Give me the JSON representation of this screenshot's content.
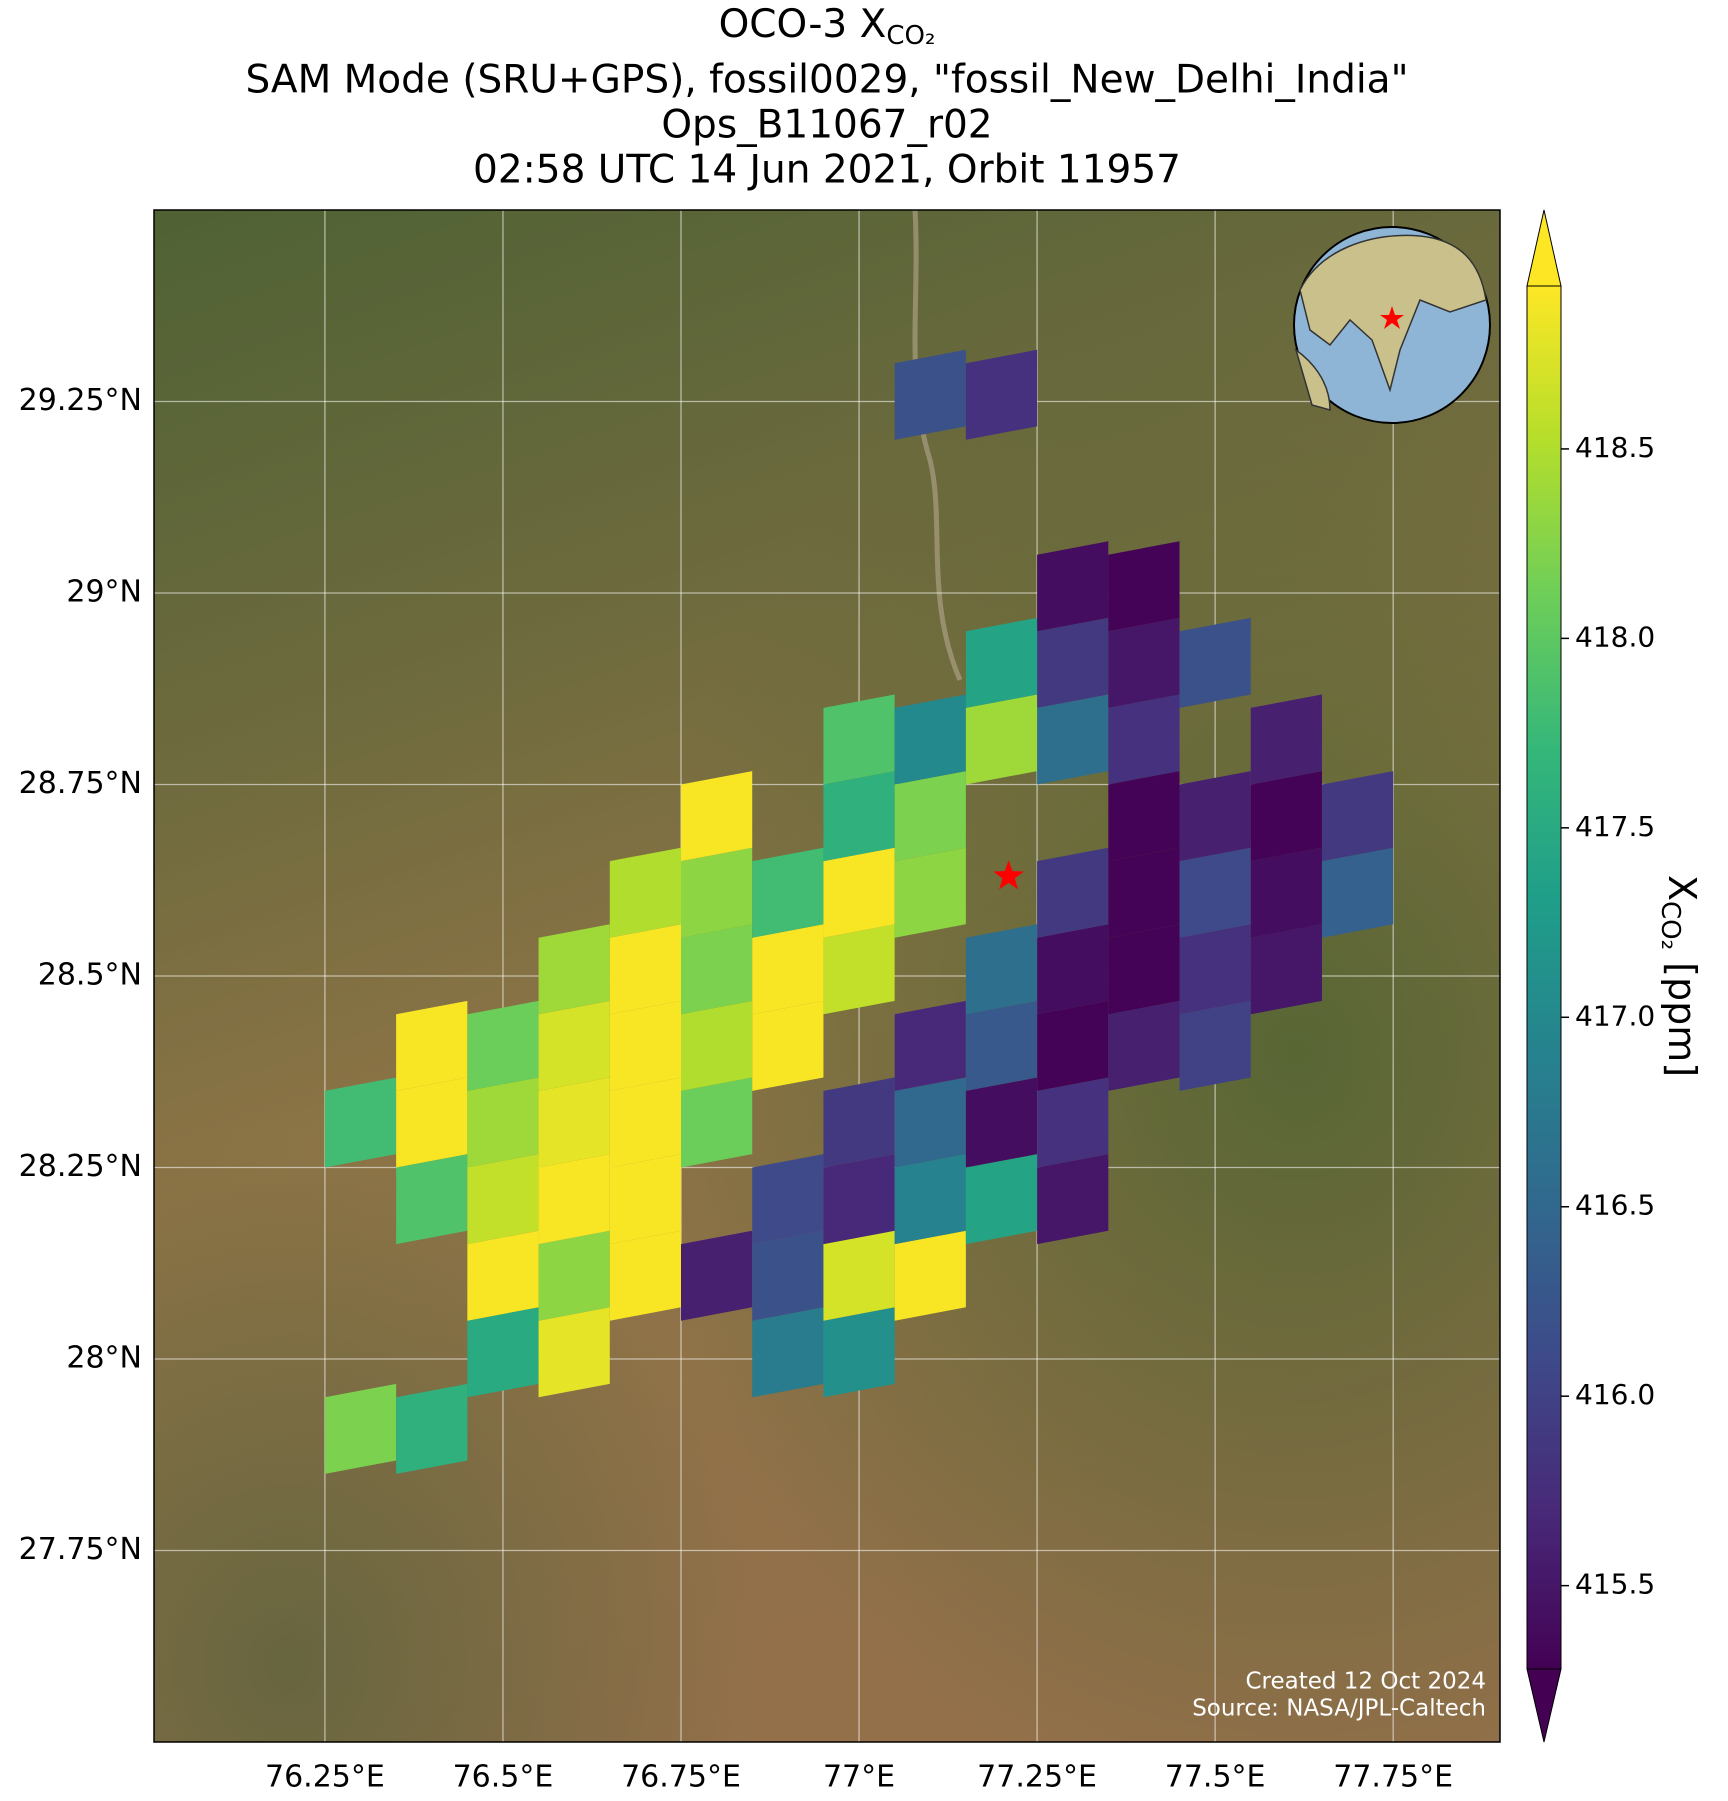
{
  "chart_data": {
    "type": "map",
    "title_prefix": "OCO-3 X",
    "title_subscript": "CO₂",
    "subtitle_lines": [
      "SAM Mode (SRU+GPS), fossil0029, \"fossil_New_Delhi_India\"",
      "Ops_B11067_r02",
      "02:58 UTC 14 Jun 2021, Orbit 11957"
    ],
    "xlim": [
      76.01,
      77.9
    ],
    "ylim": [
      27.5,
      29.5
    ],
    "xticks": [
      {
        "value": 76.25,
        "label": "76.25°E"
      },
      {
        "value": 76.5,
        "label": "76.5°E"
      },
      {
        "value": 76.75,
        "label": "76.75°E"
      },
      {
        "value": 77,
        "label": "77°E"
      },
      {
        "value": 77.25,
        "label": "77.25°E"
      },
      {
        "value": 77.5,
        "label": "77.5°E"
      },
      {
        "value": 77.75,
        "label": "77.75°E"
      }
    ],
    "yticks": [
      {
        "value": 27.75,
        "label": "27.75°N"
      },
      {
        "value": 28,
        "label": "28°N"
      },
      {
        "value": 28.25,
        "label": "28.25°N"
      },
      {
        "value": 28.5,
        "label": "28.5°N"
      },
      {
        "value": 28.75,
        "label": "28.75°N"
      },
      {
        "value": 29,
        "label": "29°N"
      },
      {
        "value": 29.25,
        "label": "29.25°N"
      }
    ],
    "grid": true,
    "colormap": "viridis",
    "clim": [
      415.28,
      418.93
    ],
    "cticks": [
      415.5,
      {
        "value": 416,
        "label": "416.0"
      },
      416.5,
      {
        "value": 417,
        "label": "417.0"
      },
      417.5,
      {
        "value": 418,
        "label": "418.0"
      },
      418.5
    ],
    "colorbar_label": {
      "symbol": "X",
      "subscript": "CO₂",
      "unit": "[ppm]"
    },
    "target": {
      "lon": 77.21,
      "lat": 28.63,
      "color": "#ff0000"
    },
    "soundings": {
      "lon": [
        76.3,
        76.4,
        76.5,
        76.6,
        76.5,
        76.6,
        76.7,
        76.4,
        76.5,
        76.6,
        76.7,
        76.3,
        76.4,
        76.5,
        76.6,
        76.7,
        76.8,
        76.4,
        76.5,
        76.6,
        76.7,
        76.8,
        76.9,
        76.6,
        76.7,
        76.8,
        76.9,
        77.0,
        76.7,
        76.8,
        76.9,
        77.0,
        77.1,
        76.8,
        77.0,
        77.1,
        77.0,
        77.1,
        77.2,
        77.3,
        77.4,
        77.2,
        77.3,
        77.4,
        77.5,
        77.3,
        77.4,
        76.9,
        77.0,
        76.8,
        76.9,
        77.0,
        77.1,
        76.9,
        77.0,
        77.1,
        77.2,
        77.3,
        77.0,
        77.1,
        77.2,
        77.3,
        77.1,
        77.2,
        77.3,
        77.4,
        77.5,
        77.2,
        77.3,
        77.4,
        77.5,
        77.6,
        77.3,
        77.4,
        77.5,
        77.6,
        77.7,
        77.4,
        77.5,
        77.6,
        77.7,
        77.6,
        77.1,
        77.2
      ],
      "lat": [
        27.9,
        27.9,
        28.0,
        28.0,
        28.1,
        28.1,
        28.1,
        28.2,
        28.2,
        28.2,
        28.2,
        28.3,
        28.3,
        28.3,
        28.3,
        28.3,
        28.3,
        28.4,
        28.4,
        28.4,
        28.4,
        28.4,
        28.4,
        28.5,
        28.5,
        28.5,
        28.5,
        28.5,
        28.6,
        28.6,
        28.6,
        28.6,
        28.6,
        28.7,
        28.7,
        28.7,
        28.8,
        28.8,
        28.8,
        28.8,
        28.8,
        28.9,
        28.9,
        28.9,
        28.9,
        29.0,
        29.0,
        28.0,
        28.0,
        28.1,
        28.1,
        28.1,
        28.1,
        28.2,
        28.2,
        28.2,
        28.2,
        28.2,
        28.3,
        28.3,
        28.3,
        28.3,
        28.4,
        28.4,
        28.4,
        28.4,
        28.4,
        28.5,
        28.5,
        28.5,
        28.5,
        28.5,
        28.6,
        28.6,
        28.6,
        28.6,
        28.6,
        28.7,
        28.7,
        28.7,
        28.7,
        28.8,
        29.25,
        29.25
      ],
      "xco2": [
        418.2,
        417.6,
        417.5,
        418.8,
        418.9,
        418.3,
        418.9,
        417.9,
        418.6,
        418.9,
        418.9,
        417.8,
        418.9,
        418.4,
        418.8,
        418.9,
        418.1,
        418.9,
        418.1,
        418.7,
        418.9,
        418.5,
        418.9,
        418.4,
        418.9,
        418.2,
        418.9,
        418.6,
        418.5,
        418.3,
        417.8,
        418.9,
        418.3,
        418.9,
        417.6,
        418.2,
        417.9,
        417.0,
        418.4,
        416.6,
        415.8,
        417.4,
        415.9,
        415.5,
        416.2,
        415.4,
        415.3,
        416.8,
        417.1,
        415.6,
        416.2,
        418.7,
        418.9,
        416.1,
        415.7,
        416.9,
        417.4,
        415.5,
        415.9,
        416.5,
        415.4,
        415.8,
        415.7,
        416.3,
        415.3,
        415.6,
        416.0,
        416.6,
        415.4,
        415.3,
        415.8,
        415.5,
        415.9,
        415.3,
        416.1,
        415.4,
        416.4,
        415.3,
        415.6,
        415.3,
        415.9,
        415.6,
        416.2,
        415.8
      ]
    },
    "credits": [
      "Created 12 Oct 2024",
      "Source: NASA/JPL-Caltech"
    ]
  }
}
